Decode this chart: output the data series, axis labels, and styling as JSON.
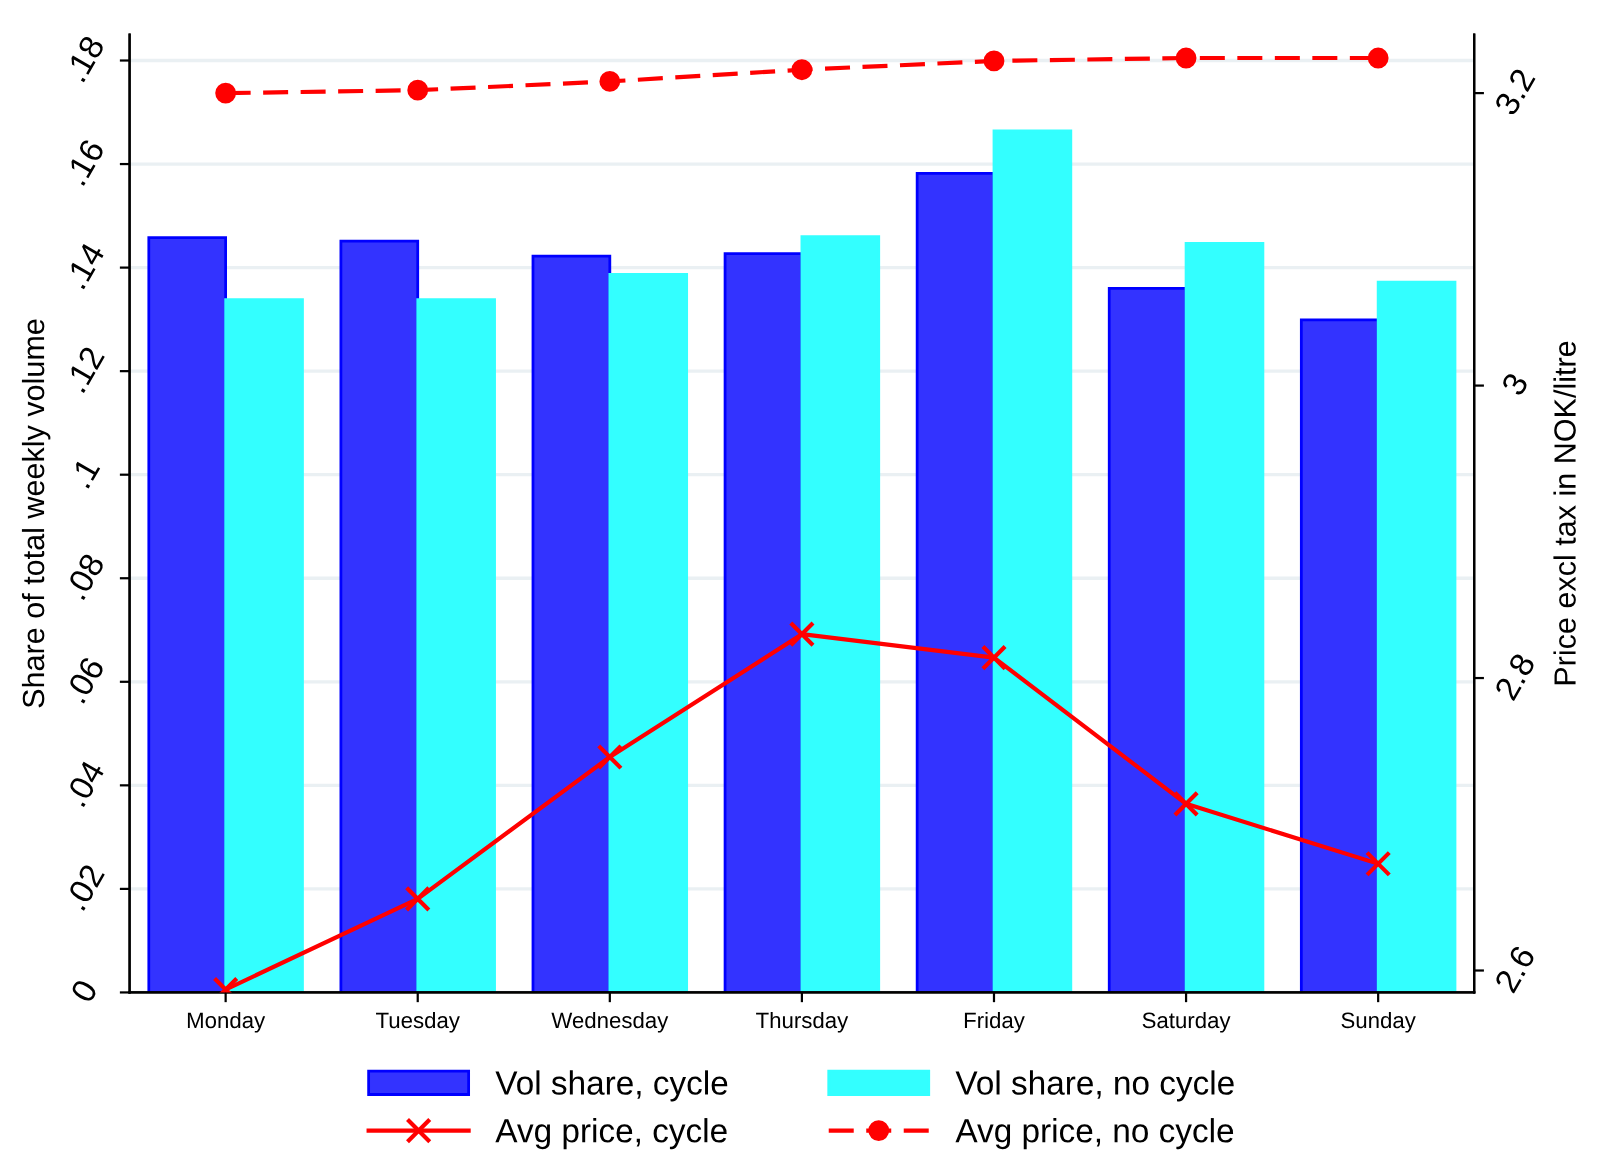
{
  "chart_data": {
    "type": "bar",
    "categories": [
      "Monday",
      "Tuesday",
      "Wednesday",
      "Thursday",
      "Friday",
      "Saturday",
      "Sunday"
    ],
    "ylabel": "Share of total weekly volume",
    "y2label": "Price excl tax in NOK/litre",
    "ylim": [
      0,
      0.185
    ],
    "yticks": [
      {
        "value": 0,
        "label": "0"
      },
      {
        "value": 0.02,
        "label": ".02"
      },
      {
        "value": 0.04,
        "label": ".04"
      },
      {
        "value": 0.06,
        "label": ".06"
      },
      {
        "value": 0.08,
        "label": ".08"
      },
      {
        "value": 0.1,
        "label": ".1"
      },
      {
        "value": 0.12,
        "label": ".12"
      },
      {
        "value": 0.14,
        "label": ".14"
      },
      {
        "value": 0.16,
        "label": ".16"
      },
      {
        "value": 0.18,
        "label": ".18"
      }
    ],
    "y2lim": [
      2.585,
      3.24
    ],
    "y2ticks": [
      2.6,
      2.8,
      3,
      3.2
    ],
    "grid": "y",
    "legend": "bottom",
    "series": [
      {
        "name": "Vol share, cycle",
        "color": "#3333ff",
        "values": [
          0.1458,
          0.1451,
          0.1422,
          0.1427,
          0.1582,
          0.136,
          0.1299
        ]
      },
      {
        "name": "Vol share, no cycle",
        "color": "#33ffff",
        "values": [
          0.1338,
          0.1338,
          0.1387,
          0.146,
          0.1664,
          0.1447,
          0.1372
        ]
      },
      {
        "name": "Avg price, cycle",
        "type": "line",
        "axis": "y2",
        "color": "#ff0000",
        "marker": "cross",
        "line_style": "solid",
        "values": [
          2.587,
          2.649,
          2.746,
          2.83,
          2.814,
          2.714,
          2.673
        ]
      },
      {
        "name": "Avg price, no cycle",
        "type": "line",
        "axis": "y2",
        "color": "#ff0000",
        "marker": "circle",
        "line_style": "dashed",
        "values": [
          3.2,
          3.202,
          3.208,
          3.216,
          3.222,
          3.224,
          3.224
        ]
      }
    ]
  }
}
